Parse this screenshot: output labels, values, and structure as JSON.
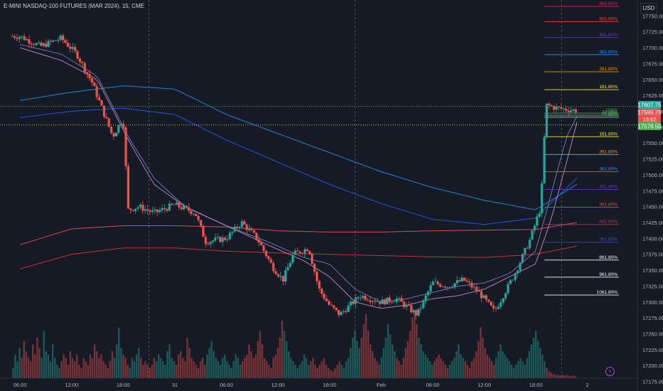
{
  "header": {
    "title": "E-MINI NASDAQ-100 FUTURES (MAR 2024), 15, CME",
    "currency": "USD"
  },
  "badges": {
    "last_price": "17599.75",
    "countdown": "13:52",
    "level_upper": "17607.75",
    "level_lower": "17578.50",
    "up_color": "#26a69a",
    "down_color": "#ef5350"
  },
  "indicator_icon": "lightning-icon",
  "chart_data": {
    "type": "candlestick",
    "y_axis": {
      "ticks": [
        17175,
        17200,
        17225,
        17250,
        17275,
        17300,
        17325,
        17350,
        17375,
        17400,
        17425,
        17450,
        17475,
        17500,
        17525,
        17550,
        17575,
        17600,
        17625,
        17650,
        17675,
        17700,
        17725,
        17750
      ],
      "tick_labels": [
        "17175.00",
        "17200.00",
        "17225.00",
        "17250.00",
        "17275.00",
        "17300.00",
        "17325.00",
        "17350.00",
        "17375.00",
        "17400.00",
        "17425.00",
        "17450.00",
        "17475.00",
        "17500.00",
        "17525.00",
        "17550.00",
        "17575.00",
        "17600.00",
        "17625.00",
        "17650.00",
        "17675.00",
        "17700.00",
        "17725.00",
        "17750.00"
      ],
      "range": [
        17160,
        17775
      ]
    },
    "x_axis": {
      "tick_labels": [
        "06:00",
        "12:00",
        "18:00",
        "31",
        "06:00",
        "12:00",
        "18:00",
        "Feb",
        "06:00",
        "12:00",
        "18:00",
        "2"
      ],
      "session_breaks": [
        2,
        6,
        10
      ]
    },
    "fib_levels": [
      {
        "label": "661.80%",
        "value": 17765,
        "color": "#e91e63",
        "start_bar": 10.1
      },
      {
        "label": "561.80%",
        "value": 17741,
        "color": "#f44336",
        "start_bar": 10.1
      },
      {
        "label": "461.80%",
        "value": 17716,
        "color": "#673ab7",
        "start_bar": 10.1
      },
      {
        "label": "361.80%",
        "value": 17689,
        "color": "#2196f3",
        "start_bar": 10.1
      },
      {
        "label": "261.80%",
        "value": 17662,
        "color": "#ff9800",
        "start_bar": 10.1
      },
      {
        "label": "161.80%",
        "value": 17634,
        "color": "#ffeb3b",
        "start_bar": 10.1
      },
      {
        "label": "100%",
        "value": 17597,
        "color": "#4caf50",
        "start_bar": 10.1
      },
      {
        "label": "78.60%",
        "value": 17594,
        "color": "#4caf50",
        "start_bar": 10.1
      },
      {
        "label": "61.80%",
        "value": 17592,
        "color": "#4caf50",
        "start_bar": 10.1
      },
      {
        "label": "50%",
        "value": 17590,
        "color": "#4caf50",
        "start_bar": 10.1
      },
      {
        "label": "161.80%",
        "value": 17560,
        "color": "#ffeb3b",
        "start_bar": 10.1
      },
      {
        "label": "261.80%",
        "value": 17532,
        "color": "#ff9800",
        "start_bar": 10.1
      },
      {
        "label": "361.80%",
        "value": 17505,
        "color": "#2196f3",
        "start_bar": 10.1
      },
      {
        "label": "461.80%",
        "value": 17477,
        "color": "#673ab7",
        "start_bar": 10.1
      },
      {
        "label": "561.80%",
        "value": 17449,
        "color": "#f44336",
        "start_bar": 10.1
      },
      {
        "label": "661.80%",
        "value": 17422,
        "color": "#e91e63",
        "start_bar": 10.1
      },
      {
        "label": "761.80%",
        "value": 17394,
        "color": "#3f51b5",
        "start_bar": 10.1
      },
      {
        "label": "861.80%",
        "value": 17366,
        "color": "#ffffff",
        "start_bar": 10.1
      },
      {
        "label": "961.80%",
        "value": 17339,
        "color": "#ffffff",
        "start_bar": 10.1
      },
      {
        "label": "1061.80%",
        "value": 17311,
        "color": "#ffffff",
        "start_bar": 10.1
      }
    ],
    "horizontal_lines": [
      {
        "value": 17607.75,
        "color": "#4caf50",
        "style": "dotted"
      },
      {
        "value": 17578.5,
        "color": "#cddc39",
        "style": "dotted"
      }
    ],
    "moving_averages": [
      {
        "color": "#2196f3",
        "points": [
          [
            0,
            17617
          ],
          [
            1,
            17630
          ],
          [
            2,
            17640
          ],
          [
            3,
            17635
          ],
          [
            4,
            17595
          ],
          [
            5,
            17565
          ],
          [
            6,
            17535
          ],
          [
            7,
            17505
          ],
          [
            8,
            17480
          ],
          [
            9,
            17460
          ],
          [
            10,
            17445
          ],
          [
            10.8,
            17485
          ]
        ]
      },
      {
        "color": "#2962ff",
        "points": [
          [
            0,
            17590
          ],
          [
            1,
            17600
          ],
          [
            2,
            17605
          ],
          [
            3,
            17595
          ],
          [
            4,
            17555
          ],
          [
            5,
            17520
          ],
          [
            6,
            17485
          ],
          [
            7,
            17455
          ],
          [
            8,
            17430
          ],
          [
            9,
            17422
          ],
          [
            10,
            17432
          ],
          [
            10.8,
            17495
          ]
        ]
      },
      {
        "color": "#ff5252",
        "points": [
          [
            0,
            17390
          ],
          [
            1,
            17415
          ],
          [
            2,
            17420
          ],
          [
            3,
            17420
          ],
          [
            4,
            17418
          ],
          [
            5,
            17412
          ],
          [
            6,
            17410
          ],
          [
            7,
            17410
          ],
          [
            8,
            17412
          ],
          [
            9,
            17413
          ],
          [
            10,
            17414
          ],
          [
            10.8,
            17425
          ]
        ]
      },
      {
        "color": "#e53935",
        "points": [
          [
            0,
            17352
          ],
          [
            1,
            17375
          ],
          [
            2,
            17385
          ],
          [
            3,
            17385
          ],
          [
            4,
            17380
          ],
          [
            5,
            17377
          ],
          [
            6,
            17375
          ],
          [
            7,
            17373
          ],
          [
            8,
            17371
          ],
          [
            9,
            17370
          ],
          [
            10,
            17375
          ],
          [
            10.8,
            17388
          ]
        ]
      },
      {
        "color": "#7986cb",
        "points": [
          [
            0,
            17705
          ],
          [
            0.8,
            17690
          ],
          [
            1.5,
            17655
          ],
          [
            2.1,
            17560
          ],
          [
            2.6,
            17495
          ],
          [
            3.2,
            17450
          ],
          [
            4,
            17420
          ],
          [
            4.8,
            17395
          ],
          [
            5.5,
            17370
          ],
          [
            6,
            17360
          ],
          [
            6.5,
            17320
          ],
          [
            7,
            17300
          ],
          [
            7.5,
            17305
          ],
          [
            8,
            17315
          ],
          [
            8.5,
            17325
          ],
          [
            9,
            17330
          ],
          [
            9.5,
            17345
          ],
          [
            10,
            17380
          ],
          [
            10.3,
            17470
          ],
          [
            10.6,
            17560
          ],
          [
            10.8,
            17592
          ]
        ]
      },
      {
        "color": "#ce93d8",
        "points": [
          [
            0,
            17700
          ],
          [
            0.8,
            17680
          ],
          [
            1.5,
            17650
          ],
          [
            2.1,
            17555
          ],
          [
            2.6,
            17485
          ],
          [
            3.2,
            17450
          ],
          [
            4,
            17420
          ],
          [
            4.8,
            17390
          ],
          [
            5.5,
            17365
          ],
          [
            6,
            17340
          ],
          [
            6.5,
            17300
          ],
          [
            7,
            17290
          ],
          [
            7.5,
            17295
          ],
          [
            8,
            17305
          ],
          [
            8.5,
            17310
          ],
          [
            9,
            17320
          ],
          [
            9.5,
            17340
          ],
          [
            10,
            17360
          ],
          [
            10.3,
            17430
          ],
          [
            10.6,
            17520
          ],
          [
            10.8,
            17583
          ]
        ]
      }
    ],
    "price_path": [
      [
        0,
        17718
      ],
      [
        0.4,
        17702
      ],
      [
        0.8,
        17715
      ],
      [
        1.1,
        17690
      ],
      [
        1.4,
        17645
      ],
      [
        1.8,
        17560
      ],
      [
        2.0,
        17590
      ],
      [
        2.1,
        17445
      ],
      [
        2.3,
        17450
      ],
      [
        2.6,
        17440
      ],
      [
        3.0,
        17453
      ],
      [
        3.4,
        17440
      ],
      [
        3.6,
        17395
      ],
      [
        4.0,
        17400
      ],
      [
        4.3,
        17425
      ],
      [
        4.6,
        17400
      ],
      [
        4.9,
        17355
      ],
      [
        5.1,
        17335
      ],
      [
        5.3,
        17375
      ],
      [
        5.6,
        17385
      ],
      [
        5.8,
        17320
      ],
      [
        6.0,
        17295
      ],
      [
        6.2,
        17280
      ],
      [
        6.6,
        17310
      ],
      [
        7.0,
        17300
      ],
      [
        7.3,
        17305
      ],
      [
        7.7,
        17280
      ],
      [
        8.0,
        17330
      ],
      [
        8.3,
        17325
      ],
      [
        8.6,
        17335
      ],
      [
        8.9,
        17315
      ],
      [
        9.2,
        17285
      ],
      [
        9.6,
        17345
      ],
      [
        9.9,
        17400
      ],
      [
        10.1,
        17450
      ],
      [
        10.2,
        17610
      ],
      [
        10.4,
        17605
      ],
      [
        10.8,
        17601
      ]
    ],
    "volume_profile": [
      0.15,
      0.35,
      0.25,
      0.45,
      0.3,
      0.55,
      0.4,
      0.3,
      0.25,
      0.5,
      0.35,
      0.6,
      0.45,
      0.3,
      0.7,
      0.4,
      0.35,
      0.25,
      0.5,
      0.3,
      0.2,
      0.15,
      0.25,
      0.35,
      0.3,
      0.2,
      0.4,
      0.3,
      0.25,
      0.35,
      0.2,
      0.15,
      0.3,
      0.25,
      0.2,
      0.35,
      0.3,
      0.5,
      0.4,
      0.3,
      0.35,
      0.25,
      0.2,
      0.15,
      0.25,
      0.4,
      0.3,
      0.5,
      0.75,
      0.45,
      0.35,
      0.3,
      0.2,
      0.15,
      0.3,
      0.25,
      0.35,
      0.45,
      0.3,
      0.2,
      0.25,
      0.2,
      0.15,
      0.2,
      0.3,
      0.25,
      0.35,
      0.3,
      0.25,
      0.2,
      0.4,
      0.5,
      0.3,
      0.25,
      0.2,
      0.35,
      0.4,
      0.3,
      0.25,
      0.6,
      0.45,
      0.3,
      0.25,
      0.2,
      0.15,
      0.25,
      0.3,
      0.2,
      0.35,
      0.45,
      0.55,
      0.4,
      0.3,
      0.25,
      0.2,
      0.3,
      0.35,
      0.25,
      0.2,
      0.15,
      0.25,
      0.35,
      0.3,
      0.2,
      0.25,
      0.3,
      0.35,
      0.5,
      0.4,
      0.3,
      0.35,
      0.55,
      0.7,
      0.5,
      0.3,
      0.25,
      0.2,
      0.15,
      0.3,
      0.35,
      0.45,
      0.6,
      0.85,
      0.7,
      0.55,
      0.4,
      0.3,
      0.25,
      0.2,
      0.15,
      0.2,
      0.25,
      0.35,
      0.3,
      0.2,
      0.25,
      0.3,
      0.2,
      0.15,
      0.2,
      0.25,
      0.3,
      0.2,
      0.15,
      0.12,
      0.1,
      0.15,
      0.2,
      0.25,
      0.2,
      0.15,
      0.25,
      0.3,
      0.45,
      0.6,
      0.7,
      0.55,
      0.45,
      0.6,
      0.8,
      0.95,
      0.7,
      0.5,
      0.4,
      0.3,
      0.25,
      0.2,
      0.3,
      0.45,
      0.6,
      0.8,
      0.65,
      0.5,
      0.4,
      0.3,
      0.25,
      0.2,
      0.3,
      0.45,
      0.55,
      0.7,
      0.9,
      1.0,
      0.8,
      0.6,
      0.5,
      0.4,
      0.35,
      0.3,
      0.25,
      0.2,
      0.25,
      0.3,
      0.35,
      0.3,
      0.25,
      0.2,
      0.15,
      0.2,
      0.25,
      0.3,
      0.4,
      0.5,
      0.35,
      0.3,
      0.25,
      0.2,
      0.15,
      0.25,
      0.3,
      0.4,
      0.55,
      0.75,
      0.6,
      0.45,
      0.35,
      0.3,
      0.25,
      0.2,
      0.3,
      0.4,
      0.5,
      0.4,
      0.35,
      0.3,
      0.25,
      0.2,
      0.15,
      0.2,
      0.25,
      0.3,
      0.25,
      0.2,
      0.3,
      0.4,
      0.5,
      0.6,
      0.7,
      0.55,
      0.45,
      0.35,
      0.25,
      0.15,
      0.1,
      0.08,
      0.06,
      0.05,
      0.05,
      0.04,
      0.05,
      0.04,
      0.05,
      0.04,
      0.03,
      0.04,
      0.03
    ]
  }
}
